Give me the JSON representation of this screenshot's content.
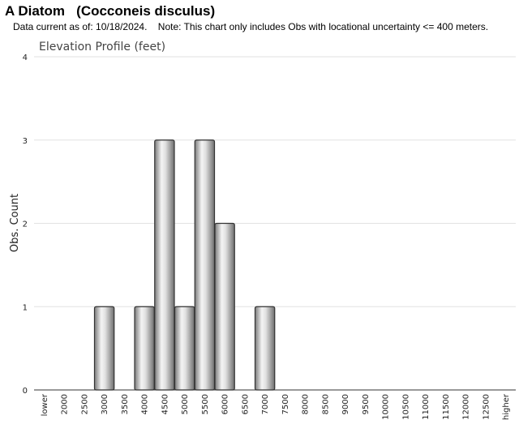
{
  "header": {
    "title": "A Diatom   (Cocconeis disculus)",
    "subtitle": "Data current as of: 10/18/2024.    Note: This chart only includes Obs with locational uncertainty <= 400 meters."
  },
  "chart_data": {
    "type": "bar",
    "title": "Elevation Profile (feet)",
    "xlabel": "",
    "ylabel": "Obs. Count",
    "ylim": [
      0,
      4
    ],
    "yticks": [
      0,
      1,
      2,
      3,
      4
    ],
    "grid": true,
    "legend": "none",
    "categories": [
      "lower",
      "2000",
      "2500",
      "3000",
      "3500",
      "4000",
      "4500",
      "5000",
      "5500",
      "6000",
      "6500",
      "7000",
      "7500",
      "8000",
      "8500",
      "9000",
      "9500",
      "10000",
      "10500",
      "11000",
      "11500",
      "12000",
      "12500",
      "higher"
    ],
    "values": [
      0,
      0,
      0,
      1,
      0,
      1,
      3,
      1,
      3,
      2,
      0,
      1,
      0,
      0,
      0,
      0,
      0,
      0,
      0,
      0,
      0,
      0,
      0,
      0
    ],
    "bar_color": "#b0b0b0"
  }
}
